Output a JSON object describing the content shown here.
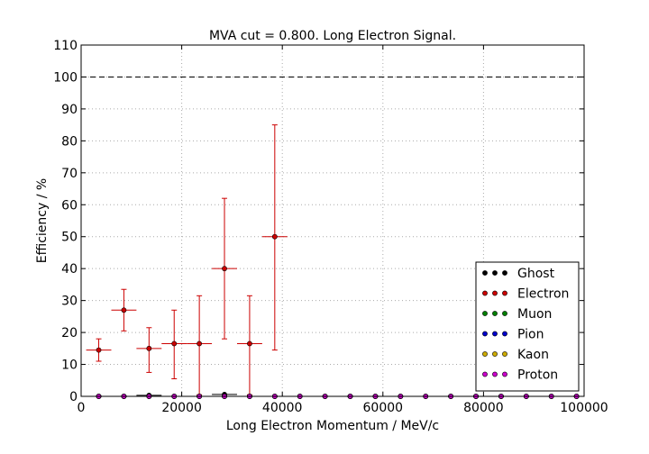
{
  "chart_data": {
    "type": "scatter",
    "title": "MVA cut = 0.800. Long Electron Signal.",
    "xlabel": "Long Electron Momentum / MeV/c",
    "ylabel": "Efficiency / %",
    "xlim": [
      0,
      100000
    ],
    "ylim": [
      0,
      110
    ],
    "xticks": [
      0,
      20000,
      40000,
      60000,
      80000,
      100000
    ],
    "yticks": [
      0,
      10,
      20,
      30,
      40,
      50,
      60,
      70,
      80,
      90,
      100,
      110
    ],
    "grid": true,
    "reference_line": {
      "y": 100,
      "style": "dashed"
    },
    "legend_position": "lower-right",
    "series": [
      {
        "name": "Ghost",
        "color": "#000000",
        "points": [
          {
            "x": 3500,
            "y": 0
          },
          {
            "x": 8500,
            "y": 0
          },
          {
            "x": 13500,
            "y": 0.3,
            "xerr": 2500
          },
          {
            "x": 18500,
            "y": 0
          },
          {
            "x": 23500,
            "y": 0
          },
          {
            "x": 28500,
            "y": 0.6,
            "xerr": 2500
          },
          {
            "x": 33500,
            "y": 0
          },
          {
            "x": 38500,
            "y": 0
          },
          {
            "x": 43500,
            "y": 0
          },
          {
            "x": 48500,
            "y": 0
          },
          {
            "x": 53500,
            "y": 0
          },
          {
            "x": 58500,
            "y": 0
          },
          {
            "x": 63500,
            "y": 0
          },
          {
            "x": 68500,
            "y": 0
          },
          {
            "x": 73500,
            "y": 0
          },
          {
            "x": 78500,
            "y": 0
          },
          {
            "x": 83500,
            "y": 0
          },
          {
            "x": 88500,
            "y": 0
          },
          {
            "x": 93500,
            "y": 0
          },
          {
            "x": 98500,
            "y": 0
          }
        ]
      },
      {
        "name": "Electron",
        "color": "#cc0000",
        "points": [
          {
            "x": 3500,
            "y": 14.5,
            "xerr": 2500,
            "ylo": 11.0,
            "yhi": 18.0
          },
          {
            "x": 8500,
            "y": 27.0,
            "xerr": 2500,
            "ylo": 20.5,
            "yhi": 33.5
          },
          {
            "x": 13500,
            "y": 15.0,
            "xerr": 2500,
            "ylo": 7.5,
            "yhi": 21.5
          },
          {
            "x": 18500,
            "y": 16.5,
            "xerr": 2500,
            "ylo": 5.5,
            "yhi": 27.0
          },
          {
            "x": 23500,
            "y": 16.5,
            "xerr": 2500,
            "ylo": 0.5,
            "yhi": 31.5
          },
          {
            "x": 28500,
            "y": 40.0,
            "xerr": 2500,
            "ylo": 18.0,
            "yhi": 62.0
          },
          {
            "x": 33500,
            "y": 16.5,
            "xerr": 2500,
            "ylo": 0.5,
            "yhi": 31.5
          },
          {
            "x": 38500,
            "y": 50.0,
            "xerr": 2500,
            "ylo": 14.5,
            "yhi": 85.0
          }
        ]
      },
      {
        "name": "Muon",
        "color": "#008000",
        "points": [
          {
            "x": 3500,
            "y": 0
          },
          {
            "x": 8500,
            "y": 0
          },
          {
            "x": 13500,
            "y": 0
          },
          {
            "x": 18500,
            "y": 0
          },
          {
            "x": 23500,
            "y": 0
          },
          {
            "x": 28500,
            "y": 0
          },
          {
            "x": 33500,
            "y": 0
          },
          {
            "x": 38500,
            "y": 0
          },
          {
            "x": 43500,
            "y": 0
          },
          {
            "x": 48500,
            "y": 0
          },
          {
            "x": 53500,
            "y": 0
          },
          {
            "x": 58500,
            "y": 0
          },
          {
            "x": 63500,
            "y": 0
          },
          {
            "x": 68500,
            "y": 0
          },
          {
            "x": 73500,
            "y": 0
          },
          {
            "x": 78500,
            "y": 0
          },
          {
            "x": 83500,
            "y": 0
          },
          {
            "x": 88500,
            "y": 0
          },
          {
            "x": 93500,
            "y": 0
          },
          {
            "x": 98500,
            "y": 0
          }
        ]
      },
      {
        "name": "Pion",
        "color": "#0000cc",
        "points": [
          {
            "x": 3500,
            "y": 0
          },
          {
            "x": 8500,
            "y": 0
          },
          {
            "x": 13500,
            "y": 0
          },
          {
            "x": 18500,
            "y": 0
          },
          {
            "x": 23500,
            "y": 0
          },
          {
            "x": 28500,
            "y": 0
          },
          {
            "x": 33500,
            "y": 0
          },
          {
            "x": 38500,
            "y": 0
          },
          {
            "x": 43500,
            "y": 0
          },
          {
            "x": 48500,
            "y": 0
          },
          {
            "x": 53500,
            "y": 0
          },
          {
            "x": 58500,
            "y": 0
          },
          {
            "x": 63500,
            "y": 0
          },
          {
            "x": 68500,
            "y": 0
          },
          {
            "x": 73500,
            "y": 0
          },
          {
            "x": 78500,
            "y": 0
          },
          {
            "x": 83500,
            "y": 0
          },
          {
            "x": 88500,
            "y": 0
          },
          {
            "x": 93500,
            "y": 0
          },
          {
            "x": 98500,
            "y": 0
          }
        ]
      },
      {
        "name": "Kaon",
        "color": "#ccaa00",
        "points": [
          {
            "x": 3500,
            "y": 0
          },
          {
            "x": 8500,
            "y": 0
          },
          {
            "x": 13500,
            "y": 0
          },
          {
            "x": 18500,
            "y": 0
          },
          {
            "x": 23500,
            "y": 0
          },
          {
            "x": 28500,
            "y": 0
          },
          {
            "x": 33500,
            "y": 0
          },
          {
            "x": 38500,
            "y": 0
          },
          {
            "x": 43500,
            "y": 0
          },
          {
            "x": 48500,
            "y": 0
          },
          {
            "x": 53500,
            "y": 0
          },
          {
            "x": 58500,
            "y": 0
          },
          {
            "x": 63500,
            "y": 0
          },
          {
            "x": 68500,
            "y": 0
          },
          {
            "x": 73500,
            "y": 0
          },
          {
            "x": 78500,
            "y": 0
          },
          {
            "x": 83500,
            "y": 0
          },
          {
            "x": 88500,
            "y": 0
          },
          {
            "x": 93500,
            "y": 0
          },
          {
            "x": 98500,
            "y": 0
          }
        ]
      },
      {
        "name": "Proton",
        "color": "#cc00cc",
        "points": [
          {
            "x": 3500,
            "y": 0
          },
          {
            "x": 8500,
            "y": 0
          },
          {
            "x": 13500,
            "y": 0
          },
          {
            "x": 18500,
            "y": 0
          },
          {
            "x": 23500,
            "y": 0
          },
          {
            "x": 28500,
            "y": 0
          },
          {
            "x": 33500,
            "y": 0
          },
          {
            "x": 38500,
            "y": 0
          },
          {
            "x": 43500,
            "y": 0
          },
          {
            "x": 48500,
            "y": 0
          },
          {
            "x": 53500,
            "y": 0
          },
          {
            "x": 58500,
            "y": 0
          },
          {
            "x": 63500,
            "y": 0
          },
          {
            "x": 68500,
            "y": 0
          },
          {
            "x": 73500,
            "y": 0
          },
          {
            "x": 78500,
            "y": 0
          },
          {
            "x": 83500,
            "y": 0
          },
          {
            "x": 88500,
            "y": 0
          },
          {
            "x": 93500,
            "y": 0
          },
          {
            "x": 98500,
            "y": 0
          }
        ]
      }
    ]
  }
}
